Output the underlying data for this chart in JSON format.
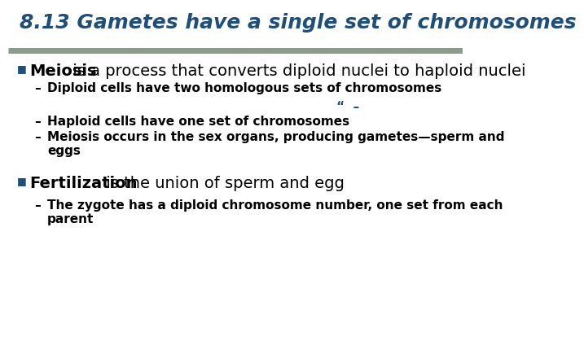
{
  "title": "8.13 Gametes have a single set of chromosomes",
  "title_color": "#1F4E79",
  "title_fontsize": 18,
  "separator_color": "#8B9B8B",
  "background_color": "#FFFFFF",
  "bullet_color": "#1F4E79",
  "bullet1_bold": "Meiosis",
  "bullet1_rest": " is a process that converts diploid nuclei to haploid nuclei",
  "bullet1_fontsize": 14,
  "sub1_1": "Diploid cells have two homologous sets of chromosomes",
  "sub1_1_extra": "“  –",
  "sub1_2": "Haploid cells have one set of chromosomes",
  "sub1_3": "Meiosis occurs in the sex organs, producing gametes—sperm and\neggs",
  "sub_fontsize": 11,
  "bullet2_bold": "Fertilization",
  "bullet2_rest": " is the union of sperm and egg",
  "bullet2_fontsize": 14,
  "sub2_1": "The zygote has a diploid chromosome number, one set from each\nparent",
  "sub2_fontsize": 11,
  "bullet_square": "■",
  "dash": "–"
}
